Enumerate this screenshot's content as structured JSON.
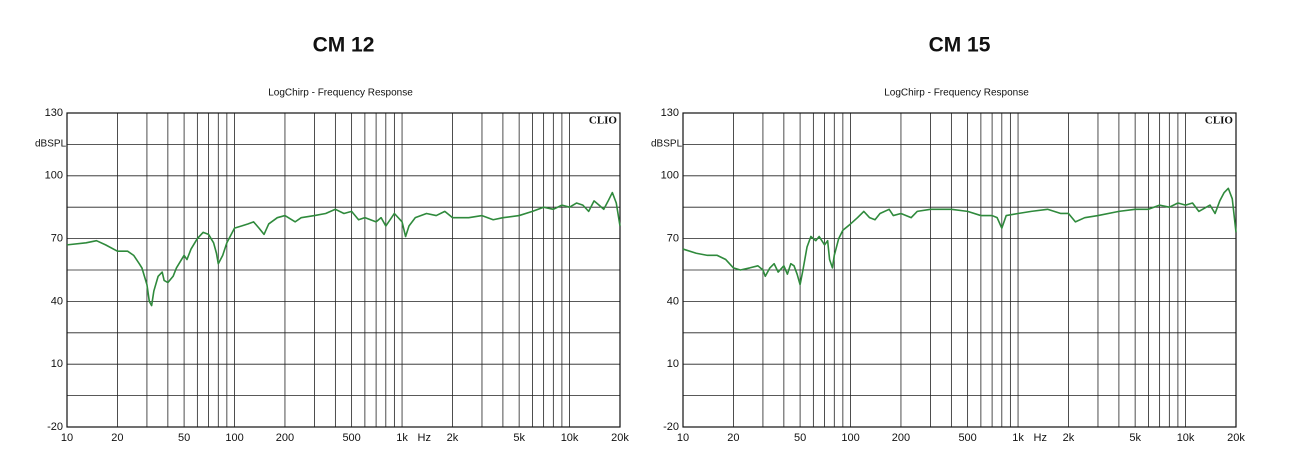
{
  "chart_data": [
    {
      "type": "line",
      "heading": "CM   12",
      "title": "LogChirp - Frequency Response",
      "ylabel": "dBSPL",
      "brand": "CLIO",
      "xlabel": "Hz",
      "xscale": "log",
      "xlim": [
        10,
        20000
      ],
      "ylim": [
        -20,
        130
      ],
      "xticks": [
        10,
        20,
        50,
        100,
        200,
        500,
        {
          "value": 1000,
          "label": "1k"
        },
        {
          "value": 2000,
          "label": "2k"
        },
        {
          "value": 5000,
          "label": "5k"
        },
        {
          "value": 10000,
          "label": "10k"
        },
        {
          "value": 20000,
          "label": "20k"
        }
      ],
      "minor_xticks": [
        30,
        40,
        60,
        70,
        80,
        90,
        300,
        400,
        600,
        700,
        800,
        900,
        3000,
        4000,
        6000,
        7000,
        8000,
        9000
      ],
      "yticks": [
        -20,
        10,
        40,
        70,
        100,
        130
      ],
      "minor_yticks": [
        -5,
        25,
        55,
        85,
        115
      ],
      "grid": true,
      "x": [
        10,
        13,
        15,
        17,
        20,
        23,
        25,
        27,
        28,
        30,
        31,
        32,
        33,
        35,
        37,
        38,
        40,
        43,
        45,
        50,
        52,
        55,
        60,
        65,
        70,
        75,
        78,
        80,
        85,
        90,
        100,
        110,
        120,
        130,
        140,
        150,
        160,
        180,
        200,
        230,
        250,
        300,
        350,
        400,
        450,
        500,
        550,
        600,
        700,
        750,
        800,
        900,
        1000,
        1050,
        1100,
        1200,
        1400,
        1600,
        1800,
        2000,
        2500,
        3000,
        3500,
        4000,
        5000,
        6000,
        7000,
        8000,
        9000,
        10000,
        11000,
        12000,
        13000,
        14000,
        15000,
        16000,
        17000,
        18000,
        19000,
        20000
      ],
      "series": [
        {
          "color": "#2f8a3c",
          "values": [
            67,
            68,
            69,
            67,
            64,
            64,
            62,
            58,
            56,
            48,
            40,
            38,
            45,
            52,
            54,
            50,
            49,
            52,
            56,
            62,
            60,
            65,
            70,
            73,
            72,
            68,
            63,
            58,
            62,
            68,
            75,
            76,
            77,
            78,
            75,
            72,
            77,
            80,
            81,
            78,
            80,
            81,
            82,
            84,
            82,
            83,
            79,
            80,
            78,
            80,
            76,
            82,
            78,
            71,
            76,
            80,
            82,
            81,
            83,
            80,
            80,
            81,
            79,
            80,
            81,
            83,
            85,
            84,
            86,
            85,
            87,
            86,
            83,
            88,
            86,
            84,
            88,
            92,
            87,
            76
          ]
        }
      ]
    },
    {
      "type": "line",
      "heading": "CM   15",
      "title": "LogChirp - Frequency Response",
      "ylabel": "dBSPL",
      "brand": "CLIO",
      "xlabel": "Hz",
      "xscale": "log",
      "xlim": [
        10,
        20000
      ],
      "ylim": [
        -20,
        130
      ],
      "xticks": [
        10,
        20,
        50,
        100,
        200,
        500,
        {
          "value": 1000,
          "label": "1k"
        },
        {
          "value": 2000,
          "label": "2k"
        },
        {
          "value": 5000,
          "label": "5k"
        },
        {
          "value": 10000,
          "label": "10k"
        },
        {
          "value": 20000,
          "label": "20k"
        }
      ],
      "minor_xticks": [
        30,
        40,
        60,
        70,
        80,
        90,
        300,
        400,
        600,
        700,
        800,
        900,
        3000,
        4000,
        6000,
        7000,
        8000,
        9000
      ],
      "yticks": [
        -20,
        10,
        40,
        70,
        100,
        130
      ],
      "minor_yticks": [
        -5,
        25,
        55,
        85,
        115
      ],
      "grid": true,
      "x": [
        10,
        12,
        14,
        16,
        18,
        20,
        22,
        25,
        28,
        30,
        31,
        33,
        35,
        37,
        40,
        42,
        44,
        46,
        48,
        50,
        52,
        55,
        58,
        62,
        65,
        70,
        73,
        75,
        78,
        80,
        85,
        90,
        100,
        110,
        120,
        130,
        140,
        150,
        170,
        180,
        200,
        230,
        250,
        300,
        400,
        500,
        600,
        700,
        750,
        800,
        850,
        1000,
        1200,
        1500,
        1800,
        2000,
        2200,
        2500,
        3000,
        4000,
        5000,
        6000,
        7000,
        8000,
        9000,
        10000,
        11000,
        12000,
        14000,
        15000,
        16000,
        17000,
        18000,
        19000,
        20000
      ],
      "series": [
        {
          "color": "#2f8a3c",
          "values": [
            65,
            63,
            62,
            62,
            60,
            56,
            55,
            56,
            57,
            55,
            52,
            56,
            58,
            54,
            57,
            53,
            58,
            57,
            53,
            48,
            55,
            66,
            71,
            69,
            71,
            67,
            69,
            60,
            56,
            62,
            70,
            74,
            77,
            80,
            83,
            80,
            79,
            82,
            84,
            81,
            82,
            80,
            83,
            84,
            84,
            83,
            81,
            81,
            80,
            75,
            81,
            82,
            83,
            84,
            82,
            82,
            78,
            80,
            81,
            83,
            84,
            84,
            86,
            85,
            87,
            86,
            87,
            83,
            86,
            82,
            88,
            92,
            94,
            89,
            73
          ]
        }
      ]
    }
  ]
}
